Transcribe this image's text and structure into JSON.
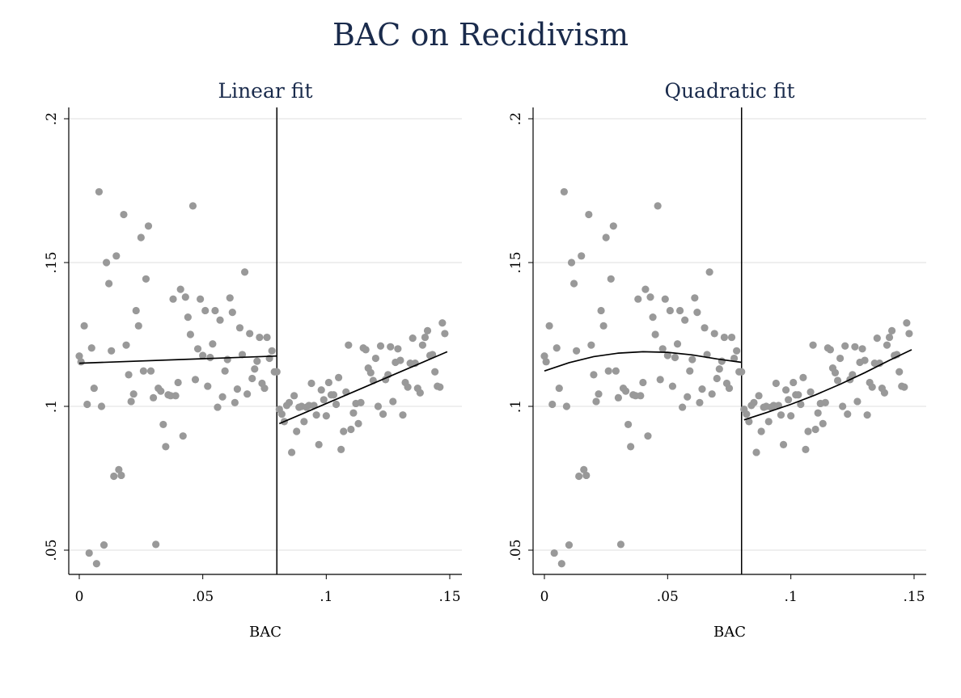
{
  "title": "BAC on Recidivism",
  "colors": {
    "title": "#1a2b4c",
    "points": "#999999",
    "fit": "#000000",
    "grid": "#eaeaea",
    "axis": "#000000"
  },
  "chart_data": [
    {
      "type": "scatter",
      "title": "Linear fit",
      "xlabel": "BAC",
      "ylabel": "",
      "xlim": [
        0,
        0.15
      ],
      "ylim": [
        0.05,
        0.2
      ],
      "xticks": [
        {
          "value": 0,
          "label": "0"
        },
        {
          "value": 0.05,
          "label": ".05"
        },
        {
          "value": 0.1,
          "label": ".1"
        },
        {
          "value": 0.15,
          "label": ".15"
        }
      ],
      "yticks": [
        {
          "value": 0.05,
          "label": ".05"
        },
        {
          "value": 0.1,
          "label": ".1"
        },
        {
          "value": 0.15,
          "label": ".15"
        },
        {
          "value": 0.2,
          "label": ".2"
        }
      ],
      "grid": true,
      "cutoff": 0.08,
      "fit_left": {
        "type": "linear",
        "points": [
          [
            0,
            0.115
          ],
          [
            0.08,
            0.1175
          ]
        ]
      },
      "fit_right": {
        "type": "linear",
        "points": [
          [
            0.081,
            0.094
          ],
          [
            0.149,
            0.119
          ]
        ]
      },
      "points": [
        [
          0.0,
          0.1175
        ],
        [
          0.0007,
          0.1155
        ],
        [
          0.002,
          0.128
        ],
        [
          0.0032,
          0.1007
        ],
        [
          0.004,
          0.049
        ],
        [
          0.005,
          0.1203
        ],
        [
          0.006,
          0.1063
        ],
        [
          0.007,
          0.0453
        ],
        [
          0.008,
          0.1746
        ],
        [
          0.009,
          0.1
        ],
        [
          0.01,
          0.0518
        ],
        [
          0.011,
          0.15
        ],
        [
          0.012,
          0.1427
        ],
        [
          0.013,
          0.1193
        ],
        [
          0.014,
          0.0757
        ],
        [
          0.015,
          0.1523
        ],
        [
          0.016,
          0.078
        ],
        [
          0.017,
          0.076
        ],
        [
          0.018,
          0.1667
        ],
        [
          0.019,
          0.1213
        ],
        [
          0.02,
          0.111
        ],
        [
          0.021,
          0.1017
        ],
        [
          0.022,
          0.1043
        ],
        [
          0.023,
          0.1333
        ],
        [
          0.024,
          0.128
        ],
        [
          0.025,
          0.1587
        ],
        [
          0.026,
          0.1123
        ],
        [
          0.027,
          0.1443
        ],
        [
          0.028,
          0.1627
        ],
        [
          0.029,
          0.1123
        ],
        [
          0.03,
          0.103
        ],
        [
          0.031,
          0.052
        ],
        [
          0.032,
          0.1063
        ],
        [
          0.033,
          0.1053
        ],
        [
          0.034,
          0.0937
        ],
        [
          0.035,
          0.086
        ],
        [
          0.036,
          0.104
        ],
        [
          0.037,
          0.1037
        ],
        [
          0.038,
          0.1373
        ],
        [
          0.039,
          0.1037
        ],
        [
          0.04,
          0.1083
        ],
        [
          0.041,
          0.1407
        ],
        [
          0.042,
          0.0897
        ],
        [
          0.043,
          0.138
        ],
        [
          0.044,
          0.131
        ],
        [
          0.045,
          0.125
        ],
        [
          0.046,
          0.1697
        ],
        [
          0.047,
          0.1093
        ],
        [
          0.048,
          0.12
        ],
        [
          0.049,
          0.1373
        ],
        [
          0.05,
          0.1177
        ],
        [
          0.051,
          0.1333
        ],
        [
          0.052,
          0.107
        ],
        [
          0.053,
          0.117
        ],
        [
          0.054,
          0.1217
        ],
        [
          0.055,
          0.1333
        ],
        [
          0.056,
          0.0997
        ],
        [
          0.057,
          0.13
        ],
        [
          0.058,
          0.1033
        ],
        [
          0.059,
          0.1123
        ],
        [
          0.06,
          0.1163
        ],
        [
          0.061,
          0.1377
        ],
        [
          0.062,
          0.1327
        ],
        [
          0.063,
          0.1013
        ],
        [
          0.064,
          0.106
        ],
        [
          0.065,
          0.1273
        ],
        [
          0.066,
          0.118
        ],
        [
          0.067,
          0.1467
        ],
        [
          0.068,
          0.1043
        ],
        [
          0.069,
          0.1253
        ],
        [
          0.07,
          0.1097
        ],
        [
          0.071,
          0.113
        ],
        [
          0.072,
          0.1157
        ],
        [
          0.073,
          0.124
        ],
        [
          0.074,
          0.108
        ],
        [
          0.075,
          0.1063
        ],
        [
          0.076,
          0.124
        ],
        [
          0.077,
          0.1167
        ],
        [
          0.078,
          0.1193
        ],
        [
          0.079,
          0.112
        ],
        [
          0.08,
          0.112
        ],
        [
          0.081,
          0.099
        ],
        [
          0.082,
          0.0973
        ],
        [
          0.083,
          0.0947
        ],
        [
          0.084,
          0.1003
        ],
        [
          0.085,
          0.1013
        ],
        [
          0.086,
          0.084
        ],
        [
          0.087,
          0.1037
        ],
        [
          0.088,
          0.0913
        ],
        [
          0.089,
          0.0997
        ],
        [
          0.09,
          0.1
        ],
        [
          0.091,
          0.0947
        ],
        [
          0.092,
          0.0997
        ],
        [
          0.093,
          0.1003
        ],
        [
          0.094,
          0.108
        ],
        [
          0.095,
          0.1003
        ],
        [
          0.096,
          0.097
        ],
        [
          0.097,
          0.0867
        ],
        [
          0.098,
          0.1057
        ],
        [
          0.099,
          0.1023
        ],
        [
          0.1,
          0.0967
        ],
        [
          0.101,
          0.1083
        ],
        [
          0.102,
          0.104
        ],
        [
          0.103,
          0.104
        ],
        [
          0.104,
          0.1007
        ],
        [
          0.105,
          0.11
        ],
        [
          0.106,
          0.085
        ],
        [
          0.107,
          0.0913
        ],
        [
          0.108,
          0.105
        ],
        [
          0.109,
          0.1213
        ],
        [
          0.11,
          0.092
        ],
        [
          0.111,
          0.0977
        ],
        [
          0.112,
          0.101
        ],
        [
          0.113,
          0.094
        ],
        [
          0.114,
          0.1013
        ],
        [
          0.115,
          0.1203
        ],
        [
          0.116,
          0.1197
        ],
        [
          0.117,
          0.1133
        ],
        [
          0.118,
          0.1117
        ],
        [
          0.119,
          0.109
        ],
        [
          0.12,
          0.1167
        ],
        [
          0.121,
          0.1
        ],
        [
          0.122,
          0.121
        ],
        [
          0.123,
          0.0973
        ],
        [
          0.124,
          0.1093
        ],
        [
          0.125,
          0.111
        ],
        [
          0.126,
          0.1207
        ],
        [
          0.127,
          0.1017
        ],
        [
          0.128,
          0.1153
        ],
        [
          0.129,
          0.12
        ],
        [
          0.13,
          0.116
        ],
        [
          0.131,
          0.097
        ],
        [
          0.132,
          0.1083
        ],
        [
          0.133,
          0.1067
        ],
        [
          0.134,
          0.115
        ],
        [
          0.135,
          0.1237
        ],
        [
          0.136,
          0.115
        ],
        [
          0.137,
          0.1063
        ],
        [
          0.138,
          0.1047
        ],
        [
          0.139,
          0.1213
        ],
        [
          0.14,
          0.124
        ],
        [
          0.141,
          0.1263
        ],
        [
          0.142,
          0.1177
        ],
        [
          0.143,
          0.118
        ],
        [
          0.144,
          0.112
        ],
        [
          0.145,
          0.107
        ],
        [
          0.146,
          0.1067
        ],
        [
          0.147,
          0.129
        ],
        [
          0.148,
          0.1253
        ]
      ]
    },
    {
      "type": "scatter",
      "title": "Quadratic fit",
      "xlabel": "BAC",
      "ylabel": "",
      "xlim": [
        0,
        0.15
      ],
      "ylim": [
        0.05,
        0.2
      ],
      "xticks": [
        {
          "value": 0,
          "label": "0"
        },
        {
          "value": 0.05,
          "label": ".05"
        },
        {
          "value": 0.1,
          "label": ".1"
        },
        {
          "value": 0.15,
          "label": ".15"
        }
      ],
      "yticks": [
        {
          "value": 0.05,
          "label": ".05"
        },
        {
          "value": 0.1,
          "label": ".1"
        },
        {
          "value": 0.15,
          "label": ".15"
        },
        {
          "value": 0.2,
          "label": ".2"
        }
      ],
      "grid": true,
      "cutoff": 0.08,
      "fit_left": {
        "type": "quadratic",
        "points": [
          [
            0,
            0.1123
          ],
          [
            0.01,
            0.1152
          ],
          [
            0.02,
            0.1173
          ],
          [
            0.03,
            0.1185
          ],
          [
            0.04,
            0.119
          ],
          [
            0.05,
            0.1188
          ],
          [
            0.06,
            0.1179
          ],
          [
            0.07,
            0.1165
          ],
          [
            0.08,
            0.1153
          ]
        ]
      },
      "fit_right": {
        "type": "quadratic",
        "points": [
          [
            0.081,
            0.0953
          ],
          [
            0.09,
            0.0978
          ],
          [
            0.1,
            0.1007
          ],
          [
            0.11,
            0.104
          ],
          [
            0.12,
            0.1077
          ],
          [
            0.13,
            0.1117
          ],
          [
            0.14,
            0.116
          ],
          [
            0.149,
            0.1197
          ]
        ]
      },
      "points": [
        [
          0.0,
          0.1175
        ],
        [
          0.0007,
          0.1155
        ],
        [
          0.002,
          0.128
        ],
        [
          0.0032,
          0.1007
        ],
        [
          0.004,
          0.049
        ],
        [
          0.005,
          0.1203
        ],
        [
          0.006,
          0.1063
        ],
        [
          0.007,
          0.0453
        ],
        [
          0.008,
          0.1746
        ],
        [
          0.009,
          0.1
        ],
        [
          0.01,
          0.0518
        ],
        [
          0.011,
          0.15
        ],
        [
          0.012,
          0.1427
        ],
        [
          0.013,
          0.1193
        ],
        [
          0.014,
          0.0757
        ],
        [
          0.015,
          0.1523
        ],
        [
          0.016,
          0.078
        ],
        [
          0.017,
          0.076
        ],
        [
          0.018,
          0.1667
        ],
        [
          0.019,
          0.1213
        ],
        [
          0.02,
          0.111
        ],
        [
          0.021,
          0.1017
        ],
        [
          0.022,
          0.1043
        ],
        [
          0.023,
          0.1333
        ],
        [
          0.024,
          0.128
        ],
        [
          0.025,
          0.1587
        ],
        [
          0.026,
          0.1123
        ],
        [
          0.027,
          0.1443
        ],
        [
          0.028,
          0.1627
        ],
        [
          0.029,
          0.1123
        ],
        [
          0.03,
          0.103
        ],
        [
          0.031,
          0.052
        ],
        [
          0.032,
          0.1063
        ],
        [
          0.033,
          0.1053
        ],
        [
          0.034,
          0.0937
        ],
        [
          0.035,
          0.086
        ],
        [
          0.036,
          0.104
        ],
        [
          0.037,
          0.1037
        ],
        [
          0.038,
          0.1373
        ],
        [
          0.039,
          0.1037
        ],
        [
          0.04,
          0.1083
        ],
        [
          0.041,
          0.1407
        ],
        [
          0.042,
          0.0897
        ],
        [
          0.043,
          0.138
        ],
        [
          0.044,
          0.131
        ],
        [
          0.045,
          0.125
        ],
        [
          0.046,
          0.1697
        ],
        [
          0.047,
          0.1093
        ],
        [
          0.048,
          0.12
        ],
        [
          0.049,
          0.1373
        ],
        [
          0.05,
          0.1177
        ],
        [
          0.051,
          0.1333
        ],
        [
          0.052,
          0.107
        ],
        [
          0.053,
          0.117
        ],
        [
          0.054,
          0.1217
        ],
        [
          0.055,
          0.1333
        ],
        [
          0.056,
          0.0997
        ],
        [
          0.057,
          0.13
        ],
        [
          0.058,
          0.1033
        ],
        [
          0.059,
          0.1123
        ],
        [
          0.06,
          0.1163
        ],
        [
          0.061,
          0.1377
        ],
        [
          0.062,
          0.1327
        ],
        [
          0.063,
          0.1013
        ],
        [
          0.064,
          0.106
        ],
        [
          0.065,
          0.1273
        ],
        [
          0.066,
          0.118
        ],
        [
          0.067,
          0.1467
        ],
        [
          0.068,
          0.1043
        ],
        [
          0.069,
          0.1253
        ],
        [
          0.07,
          0.1097
        ],
        [
          0.071,
          0.113
        ],
        [
          0.072,
          0.1157
        ],
        [
          0.073,
          0.124
        ],
        [
          0.074,
          0.108
        ],
        [
          0.075,
          0.1063
        ],
        [
          0.076,
          0.124
        ],
        [
          0.077,
          0.1167
        ],
        [
          0.078,
          0.1193
        ],
        [
          0.079,
          0.112
        ],
        [
          0.08,
          0.112
        ],
        [
          0.081,
          0.099
        ],
        [
          0.082,
          0.0973
        ],
        [
          0.083,
          0.0947
        ],
        [
          0.084,
          0.1003
        ],
        [
          0.085,
          0.1013
        ],
        [
          0.086,
          0.084
        ],
        [
          0.087,
          0.1037
        ],
        [
          0.088,
          0.0913
        ],
        [
          0.089,
          0.0997
        ],
        [
          0.09,
          0.1
        ],
        [
          0.091,
          0.0947
        ],
        [
          0.092,
          0.0997
        ],
        [
          0.093,
          0.1003
        ],
        [
          0.094,
          0.108
        ],
        [
          0.095,
          0.1003
        ],
        [
          0.096,
          0.097
        ],
        [
          0.097,
          0.0867
        ],
        [
          0.098,
          0.1057
        ],
        [
          0.099,
          0.1023
        ],
        [
          0.1,
          0.0967
        ],
        [
          0.101,
          0.1083
        ],
        [
          0.102,
          0.104
        ],
        [
          0.103,
          0.104
        ],
        [
          0.104,
          0.1007
        ],
        [
          0.105,
          0.11
        ],
        [
          0.106,
          0.085
        ],
        [
          0.107,
          0.0913
        ],
        [
          0.108,
          0.105
        ],
        [
          0.109,
          0.1213
        ],
        [
          0.11,
          0.092
        ],
        [
          0.111,
          0.0977
        ],
        [
          0.112,
          0.101
        ],
        [
          0.113,
          0.094
        ],
        [
          0.114,
          0.1013
        ],
        [
          0.115,
          0.1203
        ],
        [
          0.116,
          0.1197
        ],
        [
          0.117,
          0.1133
        ],
        [
          0.118,
          0.1117
        ],
        [
          0.119,
          0.109
        ],
        [
          0.12,
          0.1167
        ],
        [
          0.121,
          0.1
        ],
        [
          0.122,
          0.121
        ],
        [
          0.123,
          0.0973
        ],
        [
          0.124,
          0.1093
        ],
        [
          0.125,
          0.111
        ],
        [
          0.126,
          0.1207
        ],
        [
          0.127,
          0.1017
        ],
        [
          0.128,
          0.1153
        ],
        [
          0.129,
          0.12
        ],
        [
          0.13,
          0.116
        ],
        [
          0.131,
          0.097
        ],
        [
          0.132,
          0.1083
        ],
        [
          0.133,
          0.1067
        ],
        [
          0.134,
          0.115
        ],
        [
          0.135,
          0.1237
        ],
        [
          0.136,
          0.115
        ],
        [
          0.137,
          0.1063
        ],
        [
          0.138,
          0.1047
        ],
        [
          0.139,
          0.1213
        ],
        [
          0.14,
          0.124
        ],
        [
          0.141,
          0.1263
        ],
        [
          0.142,
          0.1177
        ],
        [
          0.143,
          0.118
        ],
        [
          0.144,
          0.112
        ],
        [
          0.145,
          0.107
        ],
        [
          0.146,
          0.1067
        ],
        [
          0.147,
          0.129
        ],
        [
          0.148,
          0.1253
        ]
      ]
    }
  ]
}
